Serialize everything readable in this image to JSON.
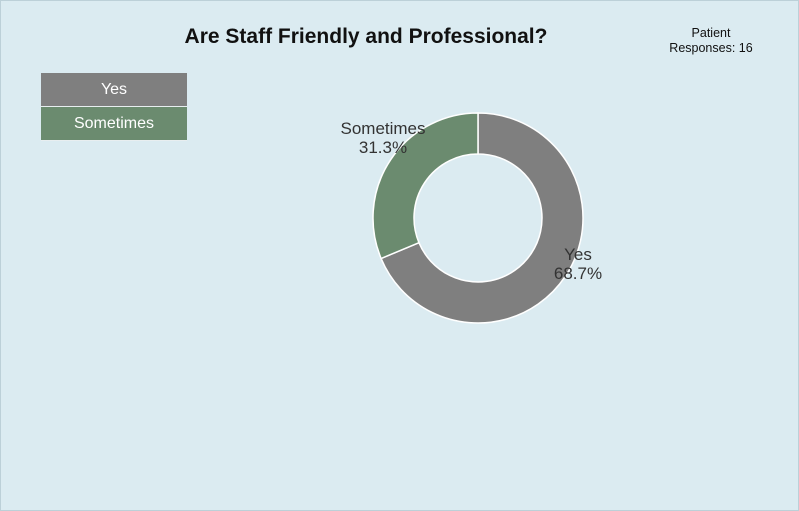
{
  "chart_data": {
    "type": "pie",
    "style": "donut",
    "title": "Are Staff Friendly and Professional?",
    "categories": [
      "Yes",
      "Sometimes"
    ],
    "values": [
      68.7,
      31.3
    ],
    "value_labels": [
      "68.7%",
      "31.3%"
    ],
    "colors": [
      "#7f7f7f",
      "#6b8b6f"
    ],
    "legend": "top-left",
    "annotation": {
      "line1": "Patient",
      "line2": "Responses: 16"
    }
  }
}
